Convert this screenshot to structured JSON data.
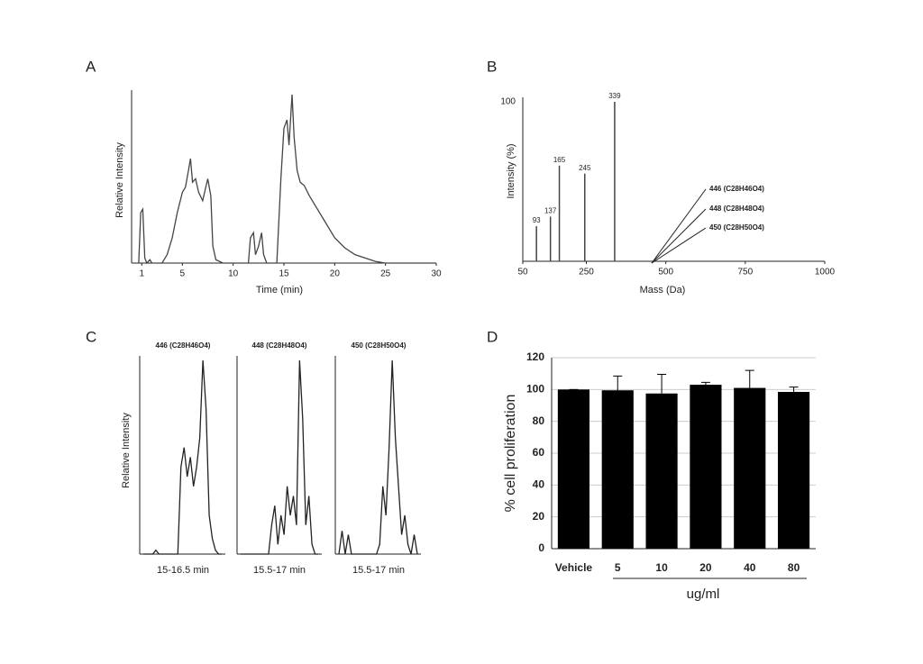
{
  "chart_data": [
    {
      "type": "line",
      "label": "A",
      "y_label": "Relative Intensity",
      "x_label": "Time (min)",
      "x": [
        0.7,
        0.9,
        1.1,
        1.3,
        1.5,
        1.8,
        2,
        3,
        3.5,
        4,
        4.5,
        5,
        5.3,
        5.6,
        5.8,
        6,
        6.3,
        6.6,
        7,
        7.3,
        7.5,
        7.8,
        8,
        8.3,
        9,
        11.5,
        11.7,
        12,
        12.2,
        12.5,
        12.8,
        13,
        13.3,
        14.3,
        14.7,
        15,
        15.3,
        15.5,
        15.8,
        16,
        16.3,
        16.6,
        17,
        17.5,
        18,
        18.5,
        19,
        19.5,
        20,
        21,
        22,
        23,
        24,
        25,
        30
      ],
      "values": [
        0,
        30,
        32,
        3,
        0,
        2,
        0,
        0,
        5,
        15,
        30,
        42,
        45,
        55,
        62,
        48,
        50,
        42,
        37,
        45,
        50,
        40,
        10,
        2,
        0,
        0,
        15,
        18,
        5,
        10,
        18,
        5,
        0,
        0,
        50,
        80,
        85,
        70,
        100,
        75,
        55,
        48,
        46,
        40,
        35,
        30,
        25,
        20,
        15,
        9,
        5,
        3,
        1,
        0,
        0
      ],
      "color": "#444",
      "xlim": [
        0,
        30
      ],
      "xticks": [
        1,
        5,
        10,
        15,
        20,
        25,
        30
      ],
      "ylim": [
        0,
        100
      ]
    },
    {
      "type": "stem",
      "label": "B",
      "y_label": "Intensity (%)",
      "x_label": "Mass (Da)",
      "x": [
        93,
        137,
        165,
        245,
        339
      ],
      "values": [
        22,
        28,
        60,
        55,
        100
      ],
      "color": "#444",
      "xlim": [
        50,
        1000
      ],
      "xticks": [
        50,
        250,
        500,
        750,
        1000
      ],
      "ylim": [
        0,
        100
      ],
      "yticks": [
        100
      ],
      "annotations": [
        "446 (C28H46O4)",
        "448 (C28H48O4)",
        "450 (C28H50O4)"
      ]
    },
    {
      "type": "line",
      "label": "C",
      "y_label": "Relative Intensity",
      "title": "446 (C28H46O4)",
      "x_label": "15-16.5 min",
      "values": [
        0,
        0,
        0,
        0,
        2,
        0,
        0,
        0,
        0,
        0,
        0,
        0,
        45,
        55,
        40,
        50,
        35,
        45,
        60,
        100,
        75,
        20,
        8,
        2,
        0,
        0
      ],
      "color": "#222",
      "ylim": [
        0,
        100
      ]
    },
    {
      "type": "line",
      "title": "448 (C28H48O4)",
      "x_label": "15.5-17 min",
      "values": [
        0,
        0,
        0,
        0,
        0,
        0,
        0,
        0,
        0,
        0,
        15,
        25,
        5,
        20,
        10,
        35,
        20,
        30,
        15,
        100,
        70,
        15,
        30,
        5,
        0,
        0
      ],
      "color": "#222",
      "ylim": [
        0,
        100
      ]
    },
    {
      "type": "line",
      "title": "450 (C28H50O4)",
      "x_label": "15.5-17 min",
      "values": [
        0,
        12,
        0,
        10,
        0,
        0,
        0,
        0,
        0,
        0,
        0,
        0,
        0,
        5,
        35,
        20,
        55,
        100,
        60,
        35,
        10,
        20,
        5,
        0,
        10,
        0
      ],
      "color": "#222",
      "ylim": [
        0,
        100
      ]
    },
    {
      "type": "bar",
      "label": "D",
      "y_label": "% cell proliferation",
      "x_label": "ug/ml",
      "categories": [
        "Vehicle",
        "5",
        "10",
        "20",
        "40",
        "80"
      ],
      "values": [
        100,
        99.5,
        97.5,
        103,
        101,
        98.5
      ],
      "errors": [
        0,
        9,
        12,
        1.5,
        11,
        3
      ],
      "color": "#000",
      "ylim": [
        0,
        120
      ],
      "yticks": [
        0,
        20,
        40,
        60,
        80,
        100,
        120
      ],
      "grid": true
    }
  ]
}
